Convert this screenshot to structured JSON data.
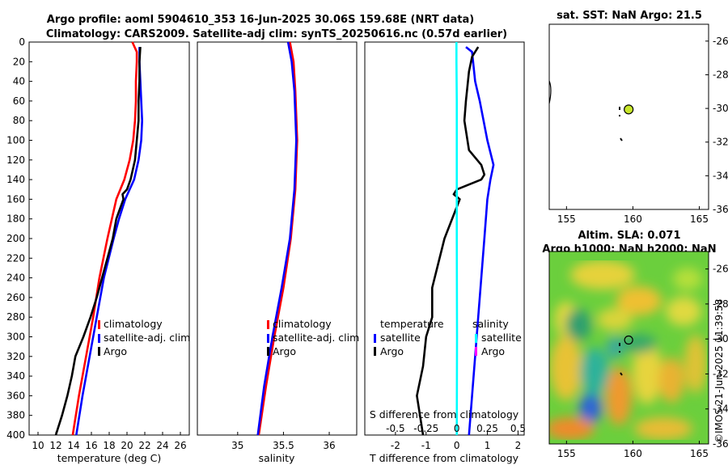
{
  "title": {
    "line1": "Argo profile: aoml 5904610_353 16-Jun-2025 30.06S 159.68E (NRT data)",
    "line2": "Climatology: CARS2009. Satellite-adj clim: synTS_20250616.nc (0.57d earlier)"
  },
  "colors": {
    "climatology": "#ff0000",
    "satellite": "#0000ff",
    "argo": "#000000",
    "sal_satellite": "#00ffff",
    "sal_argo": "#ff00ff"
  },
  "chart_data": [
    {
      "type": "line",
      "id": "temp",
      "xlabel": "temperature (deg C)",
      "ylabel": "",
      "xlim": [
        9,
        27
      ],
      "ylim": [
        400,
        0
      ],
      "xticks": [
        10,
        12,
        14,
        16,
        18,
        20,
        22,
        24,
        26
      ],
      "yticks": [
        0,
        20,
        40,
        60,
        80,
        100,
        120,
        140,
        160,
        180,
        200,
        220,
        240,
        260,
        280,
        300,
        320,
        340,
        360,
        380,
        400
      ],
      "legend": [
        "climatology",
        "satellite-adj. clim",
        "Argo"
      ],
      "series": [
        {
          "name": "climatology",
          "color": "climatology",
          "depth": [
            0,
            10,
            20,
            40,
            60,
            80,
            100,
            120,
            140,
            160,
            180,
            200,
            240,
            280,
            320,
            360,
            400
          ],
          "values": [
            20.6,
            21.1,
            21.1,
            21.0,
            21.0,
            20.9,
            20.7,
            20.3,
            19.7,
            18.8,
            18.3,
            17.8,
            16.9,
            16.2,
            15.4,
            14.6,
            13.9
          ]
        },
        {
          "name": "satellite-adj. clim",
          "color": "satellite",
          "depth": [
            5,
            20,
            40,
            60,
            80,
            100,
            120,
            140,
            160,
            180,
            200,
            240,
            280,
            320,
            360,
            400
          ],
          "values": [
            21.4,
            21.4,
            21.5,
            21.6,
            21.7,
            21.6,
            21.3,
            20.8,
            19.8,
            19.1,
            18.5,
            17.4,
            16.6,
            15.8,
            15.0,
            14.3
          ]
        },
        {
          "name": "Argo",
          "color": "argo",
          "depth": [
            5,
            20,
            40,
            60,
            80,
            100,
            120,
            140,
            150,
            155,
            160,
            170,
            180,
            200,
            220,
            240,
            260,
            280,
            300,
            320,
            340,
            360,
            380,
            400
          ],
          "values": [
            21.5,
            21.4,
            21.4,
            21.3,
            21.3,
            21.1,
            20.9,
            20.4,
            20.0,
            19.5,
            19.6,
            19.2,
            18.8,
            18.4,
            17.8,
            17.2,
            16.6,
            15.9,
            15.1,
            14.2,
            13.8,
            13.3,
            12.7,
            12.0
          ]
        }
      ]
    },
    {
      "type": "line",
      "id": "sal",
      "xlabel": "salinity",
      "ylabel": "",
      "xlim": [
        34.56,
        36.3
      ],
      "ylim": [
        400,
        0
      ],
      "xticks": [
        35,
        35.5,
        36
      ],
      "legend": [
        "climatology",
        "satellite-adj. clim",
        "Argo"
      ],
      "series": [
        {
          "name": "climatology",
          "color": "climatology",
          "depth": [
            0,
            20,
            50,
            100,
            150,
            200,
            250,
            300,
            350,
            400
          ],
          "values": [
            35.57,
            35.61,
            35.63,
            35.65,
            35.63,
            35.58,
            35.5,
            35.4,
            35.31,
            35.23
          ]
        },
        {
          "name": "satellite-adj. clim",
          "color": "satellite",
          "depth": [
            0,
            20,
            50,
            100,
            150,
            200,
            250,
            300,
            350,
            400
          ],
          "values": [
            35.55,
            35.59,
            35.62,
            35.64,
            35.62,
            35.57,
            35.48,
            35.38,
            35.29,
            35.22
          ]
        },
        {
          "name": "Argo",
          "color": "argo",
          "depth": [
            0,
            400
          ],
          "values": [
            null,
            null
          ]
        }
      ]
    },
    {
      "type": "line",
      "id": "diff",
      "xlabel": "T difference from climatology",
      "x2label": "S difference from climatology",
      "xlim": [
        -3,
        2.2
      ],
      "ylim": [
        400,
        0
      ],
      "xticks": [
        -2,
        -1,
        0,
        1,
        2
      ],
      "x2ticks": [
        -0.5,
        -0.25,
        0,
        0.25,
        0.5
      ],
      "x2lim": [
        -0.75,
        0.55
      ],
      "legend_T_title": "temperature",
      "legend_S_title": "salinity",
      "legend_T": [
        "satellite",
        "Argo"
      ],
      "legend_S": [
        "satellite",
        "Argo"
      ],
      "series": [
        {
          "name": "T satellite",
          "color": "satellite",
          "depth": [
            5,
            10,
            40,
            60,
            100,
            125,
            140,
            160,
            200,
            240,
            280,
            320,
            360,
            400
          ],
          "values": [
            0.3,
            0.5,
            0.6,
            0.75,
            1.0,
            1.2,
            1.1,
            1.0,
            0.9,
            0.8,
            0.7,
            0.6,
            0.5,
            0.4
          ]
        },
        {
          "name": "T Argo",
          "color": "argo",
          "depth": [
            5,
            15,
            30,
            60,
            80,
            110,
            125,
            135,
            140,
            145,
            150,
            155,
            160,
            200,
            250,
            280,
            300,
            330,
            360,
            400
          ],
          "values": [
            0.7,
            0.5,
            0.4,
            0.3,
            0.25,
            0.4,
            0.8,
            0.9,
            0.8,
            0.4,
            0.0,
            -0.1,
            0.1,
            -0.4,
            -0.8,
            -0.8,
            -1.0,
            -1.1,
            -1.3,
            -1.1
          ]
        },
        {
          "name": "S satellite",
          "color": "sal_satellite",
          "depth": [
            0,
            20,
            60,
            120,
            200,
            300,
            400
          ],
          "values": [
            -0.01,
            -0.01,
            0.0,
            0.0,
            0.0,
            0.01,
            0.0
          ]
        }
      ]
    }
  ],
  "maps": {
    "sst": {
      "title": "sat. SST: NaN Argo: 21.5",
      "xticks": [
        155,
        160,
        165
      ],
      "yticks": [
        -26,
        -28,
        -30,
        -32,
        -34,
        -36
      ],
      "xlim": [
        153.7,
        165.7
      ],
      "ylim": [
        -36,
        -25
      ],
      "float_lon": 159.68,
      "float_lat": -30.06
    },
    "sla": {
      "title1": "Altim. SLA: 0.071",
      "title2": "Argo h1000: NaN h2000: NaN",
      "xticks": [
        155,
        160,
        165
      ],
      "yticks": [
        -26,
        -28,
        -30,
        -32,
        -34,
        -36
      ],
      "xlim": [
        153.7,
        165.7
      ],
      "ylim": [
        -36,
        -25
      ],
      "float_lon": 159.68,
      "float_lat": -30.06
    }
  },
  "watermark": "©IMOS 21-Jun-2025 11:39:58"
}
